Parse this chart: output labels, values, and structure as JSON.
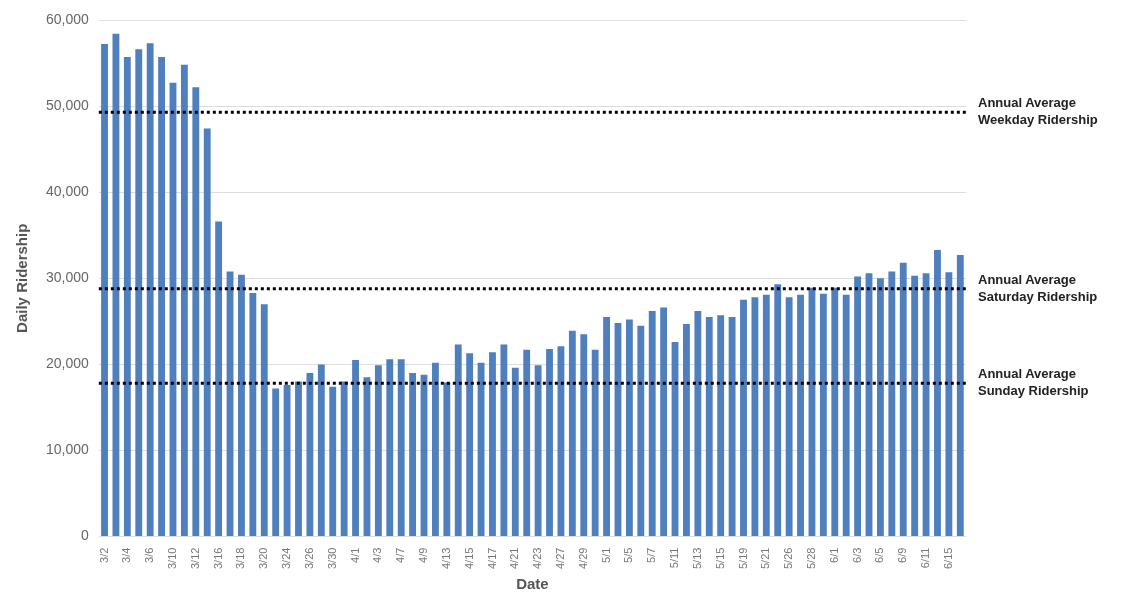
{
  "chart_data": {
    "type": "bar",
    "xlabel": "Date",
    "ylabel": "Daily Ridership",
    "categories": [
      "3/2",
      null,
      "3/4",
      null,
      "3/6",
      null,
      "3/10",
      null,
      "3/12",
      null,
      "3/16",
      null,
      "3/18",
      null,
      "3/20",
      null,
      "3/24",
      null,
      "3/26",
      null,
      "3/30",
      null,
      "4/1",
      null,
      "4/3",
      null,
      "4/7",
      null,
      "4/9",
      null,
      "4/13",
      null,
      "4/15",
      null,
      "4/17",
      null,
      "4/21",
      null,
      "4/23",
      null,
      "4/27",
      null,
      "4/29",
      null,
      "5/1",
      null,
      "5/5",
      null,
      "5/7",
      null,
      "5/11",
      null,
      "5/13",
      null,
      "5/15",
      null,
      "5/19",
      null,
      "5/21",
      null,
      "5/26",
      null,
      "5/28",
      null,
      "6/1",
      null,
      "6/3",
      null,
      "6/5",
      null,
      "6/9",
      null,
      "6/11",
      null,
      "6/15",
      null
    ],
    "values": [
      57200,
      58400,
      55700,
      56600,
      57300,
      55700,
      52700,
      54800,
      52200,
      47400,
      36600,
      30800,
      30400,
      28300,
      27000,
      17200,
      17600,
      18000,
      19000,
      20000,
      17400,
      18000,
      20500,
      18500,
      19900,
      20600,
      20600,
      19000,
      18800,
      20200,
      17900,
      22300,
      21300,
      20200,
      21400,
      22300,
      19600,
      21700,
      19900,
      21800,
      22100,
      23900,
      23500,
      21700,
      25500,
      24800,
      25200,
      24500,
      26200,
      26600,
      22600,
      24700,
      26200,
      25500,
      25700,
      25500,
      27500,
      27800,
      28100,
      29300,
      27800,
      28100,
      28900,
      28200,
      28900,
      28100,
      30200,
      30600,
      30000,
      30800,
      31800,
      30300,
      30600,
      33300,
      30700,
      32700
    ],
    "color": "#4f7fbc",
    "ylim": [
      0,
      60000
    ],
    "yticks": [
      0,
      {
        "value": 10000,
        "label": "10,000"
      },
      {
        "value": 20000,
        "label": "20,000"
      },
      {
        "value": 30000,
        "label": "30,000"
      },
      {
        "value": 40000,
        "label": "40,000"
      },
      {
        "value": 50000,
        "label": "50,000"
      },
      {
        "value": 60000,
        "label": "60,000"
      }
    ],
    "grid": "y",
    "legend": false,
    "ref_lines": [
      {
        "axis": "y",
        "value": 49300,
        "label": "Annual Average\nWeekday Ridership",
        "color": "#000000",
        "line_style": "dotted"
      },
      {
        "axis": "y",
        "value": 28800,
        "label": "Annual Average\nSaturday Ridership",
        "color": "#000000",
        "line_style": "dotted"
      },
      {
        "axis": "y",
        "value": 17800,
        "label": "Annual Average\nSunday Ridership",
        "color": "#000000",
        "line_style": "dotted"
      }
    ]
  }
}
